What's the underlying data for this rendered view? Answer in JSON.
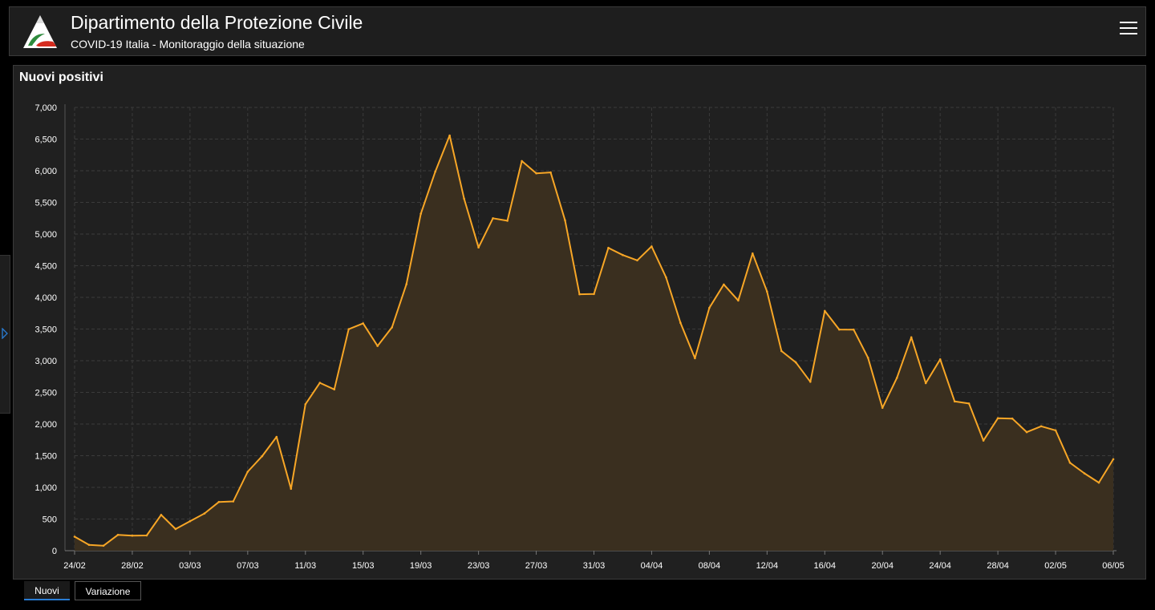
{
  "header": {
    "title": "Dipartimento della Protezione Civile",
    "subtitle": "COVID-19 Italia - Monitoraggio della situazione",
    "logo_icon": "protezione-civile-logo-icon",
    "menu_icon": "hamburger-menu-icon"
  },
  "panel": {
    "title": "Nuovi positivi"
  },
  "tabs": [
    {
      "label": "Nuovi",
      "active": true
    },
    {
      "label": "Variazione",
      "active": false
    }
  ],
  "colors": {
    "line": "#f7a626",
    "area": "#3a2f1f",
    "background": "#202020",
    "grid": "#3b3b3b",
    "text": "#ffffff"
  },
  "chart_data": {
    "type": "area",
    "title": "Nuovi positivi",
    "xlabel": "",
    "ylabel": "",
    "ylim": [
      0,
      7000
    ],
    "yticks": [
      0,
      500,
      1000,
      1500,
      2000,
      2500,
      3000,
      3500,
      4000,
      4500,
      5000,
      5500,
      6000,
      6500,
      7000
    ],
    "ytick_labels": [
      "0",
      "500",
      "1,000",
      "1,500",
      "2,000",
      "2,500",
      "3,000",
      "3,500",
      "4,000",
      "4,500",
      "5,000",
      "5,500",
      "6,000",
      "6,500",
      "7,000"
    ],
    "xtick_labels": [
      "24/02",
      "28/02",
      "03/03",
      "07/03",
      "11/03",
      "15/03",
      "19/03",
      "23/03",
      "27/03",
      "31/03",
      "04/04",
      "08/04",
      "12/04",
      "16/04",
      "20/04",
      "24/04",
      "28/04",
      "02/05",
      "06/05"
    ],
    "grid": true,
    "legend": "none",
    "series": [
      {
        "values": [
          221,
          93,
          78,
          250,
          238,
          240,
          566,
          342,
          466,
          587,
          769,
          778,
          1247,
          1492,
          1797,
          977,
          2313,
          2651,
          2547,
          3497,
          3590,
          3233,
          3526,
          4207,
          5322,
          5986,
          6557,
          5560,
          4789,
          5249,
          5210,
          6153,
          5959,
          5974,
          5217,
          4050,
          4053,
          4782,
          4668,
          4585,
          4805,
          4316,
          3599,
          3039,
          3836,
          4204,
          3951,
          4694,
          4092,
          3153,
          2972,
          2667,
          3786,
          3493,
          3491,
          3047,
          2256,
          2729,
          3370,
          2646,
          3021,
          2357,
          2324,
          1739,
          2091,
          2086,
          1872,
          1965,
          1900,
          1389,
          1221,
          1075,
          1444
        ]
      }
    ]
  }
}
